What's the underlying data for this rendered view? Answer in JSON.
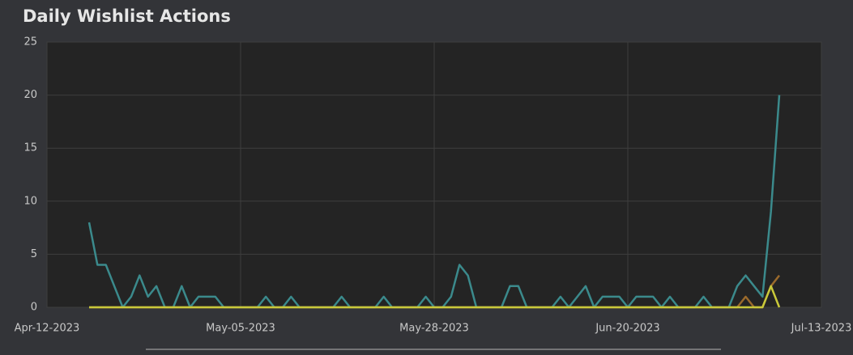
{
  "chart_data": {
    "type": "line",
    "title": "Daily Wishlist Actions",
    "x": [
      "Apr-17-2023",
      "Apr-18-2023",
      "Apr-19-2023",
      "Apr-20-2023",
      "Apr-21-2023",
      "Apr-22-2023",
      "Apr-23-2023",
      "Apr-24-2023",
      "Apr-25-2023",
      "Apr-26-2023",
      "Apr-27-2023",
      "Apr-28-2023",
      "Apr-29-2023",
      "Apr-30-2023",
      "May-01-2023",
      "May-02-2023",
      "May-03-2023",
      "May-04-2023",
      "May-05-2023",
      "May-06-2023",
      "May-07-2023",
      "May-08-2023",
      "May-09-2023",
      "May-10-2023",
      "May-11-2023",
      "May-12-2023",
      "May-13-2023",
      "May-14-2023",
      "May-15-2023",
      "May-16-2023",
      "May-17-2023",
      "May-18-2023",
      "May-19-2023",
      "May-20-2023",
      "May-21-2023",
      "May-22-2023",
      "May-23-2023",
      "May-24-2023",
      "May-25-2023",
      "May-26-2023",
      "May-27-2023",
      "May-28-2023",
      "May-29-2023",
      "May-30-2023",
      "May-31-2023",
      "Jun-01-2023",
      "Jun-02-2023",
      "Jun-03-2023",
      "Jun-04-2023",
      "Jun-05-2023",
      "Jun-06-2023",
      "Jun-07-2023",
      "Jun-08-2023",
      "Jun-09-2023",
      "Jun-10-2023",
      "Jun-11-2023",
      "Jun-12-2023",
      "Jun-13-2023",
      "Jun-14-2023",
      "Jun-15-2023",
      "Jun-16-2023",
      "Jun-17-2023",
      "Jun-18-2023",
      "Jun-19-2023",
      "Jun-20-2023",
      "Jun-21-2023",
      "Jun-22-2023",
      "Jun-23-2023",
      "Jun-24-2023",
      "Jun-25-2023",
      "Jun-26-2023",
      "Jun-27-2023",
      "Jun-28-2023",
      "Jun-29-2023",
      "Jun-30-2023",
      "Jul-01-2023",
      "Jul-02-2023",
      "Jul-03-2023",
      "Jul-04-2023",
      "Jul-05-2023",
      "Jul-06-2023",
      "Jul-07-2023",
      "Jul-08-2023"
    ],
    "series": [
      {
        "color": "#3b8a8c",
        "values": [
          8,
          4,
          4,
          2,
          0,
          1,
          3,
          1,
          2,
          0,
          0,
          2,
          0,
          1,
          1,
          1,
          0,
          0,
          0,
          0,
          0,
          1,
          0,
          0,
          1,
          0,
          0,
          0,
          0,
          0,
          1,
          0,
          0,
          0,
          0,
          1,
          0,
          0,
          0,
          0,
          1,
          0,
          0,
          1,
          4,
          3,
          0,
          0,
          0,
          0,
          2,
          2,
          0,
          0,
          0,
          0,
          1,
          0,
          1,
          2,
          0,
          1,
          1,
          1,
          0,
          1,
          1,
          1,
          0,
          1,
          0,
          0,
          0,
          1,
          0,
          0,
          0,
          2,
          3,
          2,
          1,
          9,
          20
        ]
      },
      {
        "color": "#9a6a2c",
        "values": [
          0,
          0,
          0,
          0,
          0,
          0,
          0,
          0,
          0,
          0,
          0,
          0,
          0,
          0,
          0,
          0,
          0,
          0,
          0,
          0,
          0,
          0,
          0,
          0,
          0,
          0,
          0,
          0,
          0,
          0,
          0,
          0,
          0,
          0,
          0,
          0,
          0,
          0,
          0,
          0,
          0,
          0,
          0,
          0,
          0,
          0,
          0,
          0,
          0,
          0,
          0,
          0,
          0,
          0,
          0,
          0,
          0,
          0,
          0,
          0,
          0,
          0,
          0,
          0,
          0,
          0,
          0,
          0,
          0,
          0,
          0,
          0,
          0,
          0,
          0,
          0,
          0,
          0,
          1,
          0,
          0,
          2,
          3
        ]
      },
      {
        "color": "#c9c93a",
        "values": [
          0,
          0,
          0,
          0,
          0,
          0,
          0,
          0,
          0,
          0,
          0,
          0,
          0,
          0,
          0,
          0,
          0,
          0,
          0,
          0,
          0,
          0,
          0,
          0,
          0,
          0,
          0,
          0,
          0,
          0,
          0,
          0,
          0,
          0,
          0,
          0,
          0,
          0,
          0,
          0,
          0,
          0,
          0,
          0,
          0,
          0,
          0,
          0,
          0,
          0,
          0,
          0,
          0,
          0,
          0,
          0,
          0,
          0,
          0,
          0,
          0,
          0,
          0,
          0,
          0,
          0,
          0,
          0,
          0,
          0,
          0,
          0,
          0,
          0,
          0,
          0,
          0,
          0,
          0,
          0,
          0,
          2,
          0
        ]
      }
    ],
    "xlim": [
      "Apr-12-2023",
      "Jul-13-2023"
    ],
    "xticks": [
      "Apr-12-2023",
      "May-05-2023",
      "May-28-2023",
      "Jun-20-2023",
      "Jul-13-2023"
    ],
    "ylim": [
      0,
      25
    ],
    "yticks": [
      0,
      5,
      10,
      15,
      20,
      25
    ],
    "grid": true
  }
}
